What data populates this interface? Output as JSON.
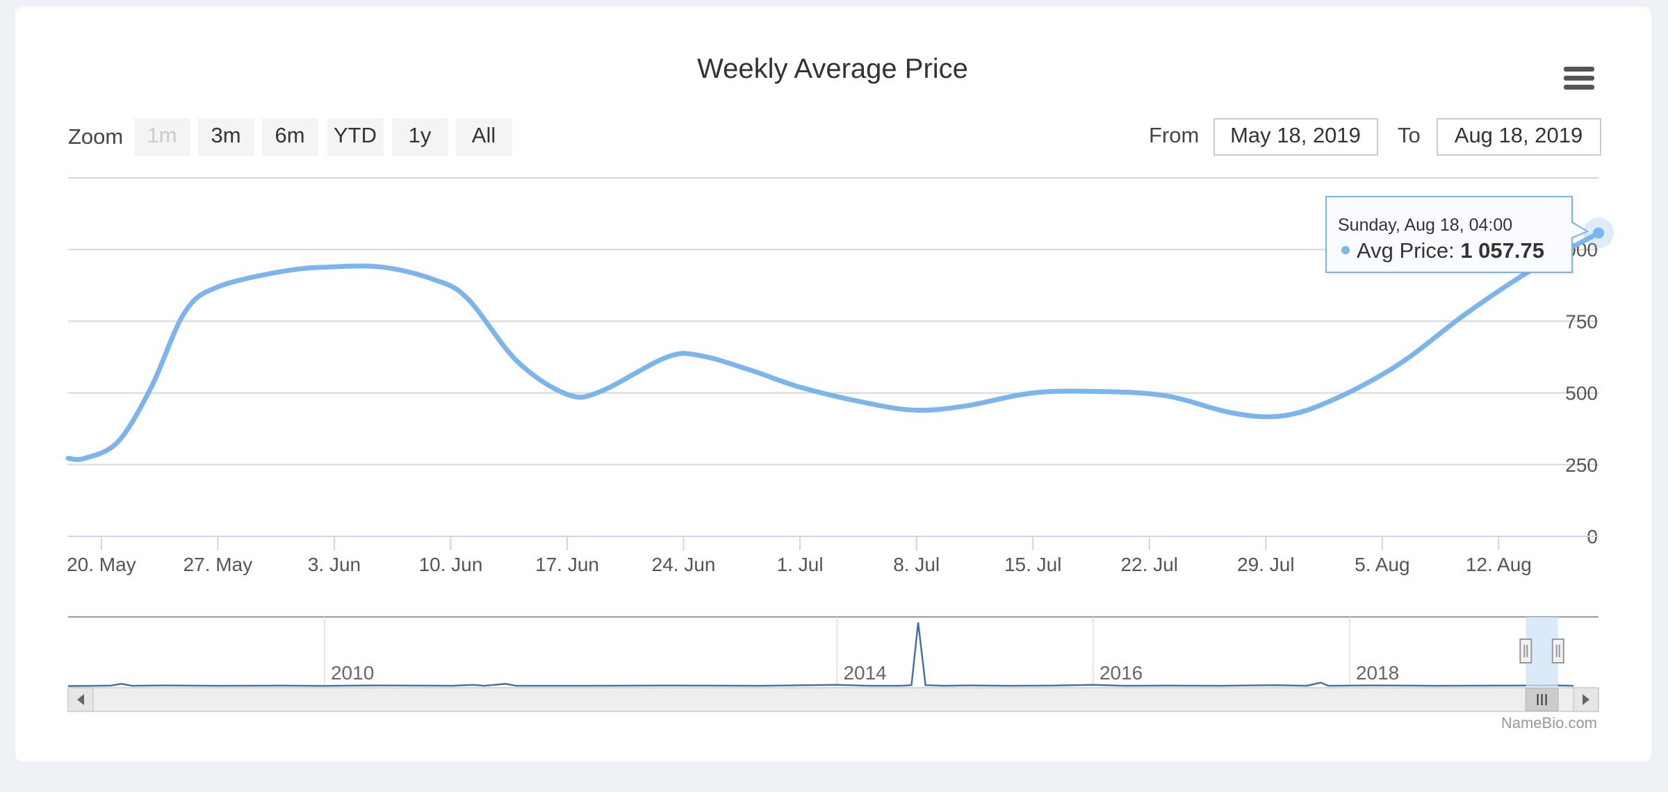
{
  "chart_title": "Weekly Average Price",
  "menu_icon": "hamburger-menu-icon",
  "range_selector": {
    "zoom_label": "Zoom",
    "buttons": [
      {
        "label": "1m",
        "disabled": true
      },
      {
        "label": "3m",
        "disabled": false
      },
      {
        "label": "6m",
        "disabled": false
      },
      {
        "label": "YTD",
        "disabled": false
      },
      {
        "label": "1y",
        "disabled": false
      },
      {
        "label": "All",
        "disabled": false
      }
    ],
    "from_label": "From",
    "from_value": "May 18, 2019",
    "to_label": "To",
    "to_value": "Aug 18, 2019"
  },
  "tooltip": {
    "header": "Sunday, Aug 18, 04:00",
    "series_label": "Avg Price: ",
    "value_text": "1 057.75"
  },
  "credit": "NameBio.com",
  "colors": {
    "series": "#7cb5ec",
    "navigator_series": "#4572a7",
    "navigator_mask": "#cfe3f7"
  },
  "chart_data": {
    "type": "line",
    "title": "Weekly Average Price",
    "xlabel": "",
    "ylabel": "",
    "ylim": [
      0,
      1250
    ],
    "yticks": [
      0,
      250,
      500,
      750,
      1000
    ],
    "x_range": [
      "2019-05-18",
      "2019-08-18"
    ],
    "xticks": [
      {
        "label": "20. May",
        "date": "2019-05-20"
      },
      {
        "label": "27. May",
        "date": "2019-05-27"
      },
      {
        "label": "3. Jun",
        "date": "2019-06-03"
      },
      {
        "label": "10. Jun",
        "date": "2019-06-10"
      },
      {
        "label": "17. Jun",
        "date": "2019-06-17"
      },
      {
        "label": "24. Jun",
        "date": "2019-06-24"
      },
      {
        "label": "1. Jul",
        "date": "2019-07-01"
      },
      {
        "label": "8. Jul",
        "date": "2019-07-08"
      },
      {
        "label": "15. Jul",
        "date": "2019-07-15"
      },
      {
        "label": "22. Jul",
        "date": "2019-07-22"
      },
      {
        "label": "29. Jul",
        "date": "2019-07-29"
      },
      {
        "label": "5. Aug",
        "date": "2019-08-05"
      },
      {
        "label": "12. Aug",
        "date": "2019-08-12"
      }
    ],
    "grid": true,
    "series": [
      {
        "name": "Avg Price",
        "points": [
          [
            "2019-05-18",
            272
          ],
          [
            "2019-05-19",
            272
          ],
          [
            "2019-05-21",
            330
          ],
          [
            "2019-05-23",
            520
          ],
          [
            "2019-05-25",
            780
          ],
          [
            "2019-05-27",
            870
          ],
          [
            "2019-05-31",
            925
          ],
          [
            "2019-06-03",
            940
          ],
          [
            "2019-06-06",
            938
          ],
          [
            "2019-06-09",
            895
          ],
          [
            "2019-06-11",
            830
          ],
          [
            "2019-06-14",
            610
          ],
          [
            "2019-06-17",
            495
          ],
          [
            "2019-06-19",
            505
          ],
          [
            "2019-06-23",
            625
          ],
          [
            "2019-06-25",
            630
          ],
          [
            "2019-06-28",
            580
          ],
          [
            "2019-07-01",
            520
          ],
          [
            "2019-07-05",
            465
          ],
          [
            "2019-07-08",
            440
          ],
          [
            "2019-07-11",
            455
          ],
          [
            "2019-07-15",
            500
          ],
          [
            "2019-07-19",
            505
          ],
          [
            "2019-07-23",
            490
          ],
          [
            "2019-07-27",
            430
          ],
          [
            "2019-07-30",
            420
          ],
          [
            "2019-08-02",
            475
          ],
          [
            "2019-08-06",
            600
          ],
          [
            "2019-08-10",
            775
          ],
          [
            "2019-08-14",
            930
          ],
          [
            "2019-08-18",
            1057.75
          ]
        ]
      }
    ],
    "navigator": {
      "x_range": [
        "2008-01-01",
        "2019-10-01"
      ],
      "year_labels": [
        {
          "label": "2010",
          "date": "2010-01-01"
        },
        {
          "label": "2014",
          "date": "2014-01-01"
        },
        {
          "label": "2016",
          "date": "2016-01-01"
        },
        {
          "label": "2018",
          "date": "2018-01-01"
        }
      ],
      "selected_range": [
        "2019-05-18",
        "2019-08-18"
      ],
      "points": [
        [
          "2008-01-01",
          0.5
        ],
        [
          "2008-05-01",
          1.2
        ],
        [
          "2008-06-01",
          4
        ],
        [
          "2008-07-01",
          1
        ],
        [
          "2008-10-01",
          1.5
        ],
        [
          "2009-03-01",
          1
        ],
        [
          "2009-09-01",
          1.2
        ],
        [
          "2010-01-01",
          0.8
        ],
        [
          "2010-06-01",
          1.5
        ],
        [
          "2011-01-01",
          1
        ],
        [
          "2011-03-01",
          2.5
        ],
        [
          "2011-04-01",
          1
        ],
        [
          "2011-06-01",
          4
        ],
        [
          "2011-07-01",
          1
        ],
        [
          "2012-01-01",
          1
        ],
        [
          "2012-09-01",
          1.3
        ],
        [
          "2013-06-01",
          1
        ],
        [
          "2014-01-01",
          2.5
        ],
        [
          "2014-04-01",
          1
        ],
        [
          "2014-07-01",
          1
        ],
        [
          "2014-08-01",
          2
        ],
        [
          "2014-08-20",
          100
        ],
        [
          "2014-09-10",
          2
        ],
        [
          "2014-11-01",
          1
        ],
        [
          "2015-01-01",
          1.5
        ],
        [
          "2015-05-01",
          1
        ],
        [
          "2015-09-01",
          1.2
        ],
        [
          "2016-01-01",
          2.5
        ],
        [
          "2016-04-01",
          1
        ],
        [
          "2016-08-01",
          1.2
        ],
        [
          "2017-01-01",
          1
        ],
        [
          "2017-06-01",
          1.8
        ],
        [
          "2017-09-01",
          1
        ],
        [
          "2017-10-10",
          6
        ],
        [
          "2017-11-01",
          1
        ],
        [
          "2018-03-01",
          1.5
        ],
        [
          "2018-09-01",
          1
        ],
        [
          "2019-03-01",
          1.2
        ],
        [
          "2019-08-18",
          1.5
        ],
        [
          "2019-10-01",
          1
        ]
      ]
    }
  }
}
